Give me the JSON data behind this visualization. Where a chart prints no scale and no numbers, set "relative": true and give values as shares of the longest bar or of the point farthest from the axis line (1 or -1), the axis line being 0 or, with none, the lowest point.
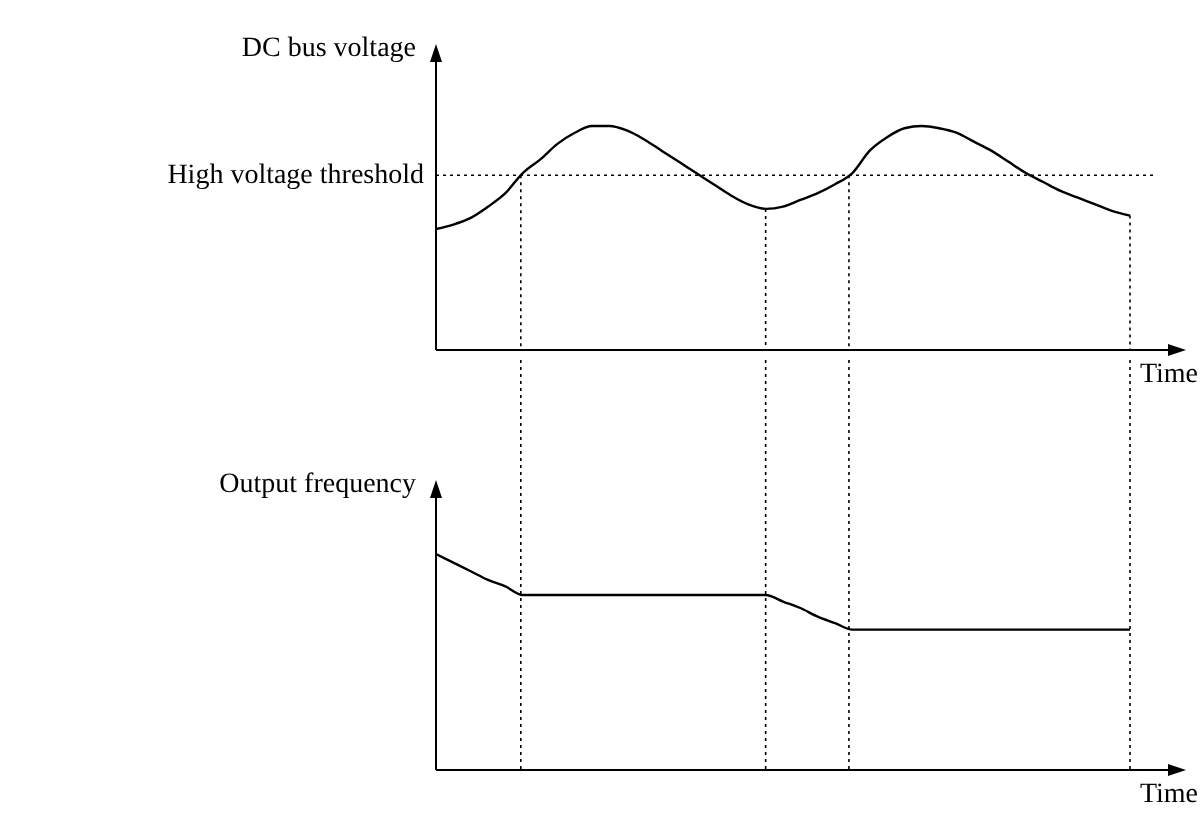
{
  "chart_data": [
    {
      "type": "line",
      "relative": true,
      "ylabel": "DC bus voltage",
      "xlabel": "Time",
      "line_style": "solid",
      "categories": [
        null,
        null,
        null,
        null,
        null,
        null,
        null,
        null,
        null,
        null,
        null,
        null,
        null,
        null,
        null,
        null,
        null,
        null,
        null,
        null,
        null,
        null,
        null,
        null,
        null,
        null,
        null,
        null,
        null,
        null,
        null,
        null,
        null,
        null,
        null,
        null,
        null,
        null,
        null,
        null,
        null
      ],
      "series": [
        {
          "color": "#000000",
          "values": [
            0.54,
            0.56,
            0.59,
            0.64,
            0.7,
            0.79,
            0.85,
            0.92,
            0.97,
            1.0,
            1.0,
            0.98,
            0.94,
            0.89,
            0.84,
            0.79,
            0.74,
            0.69,
            0.65,
            0.63,
            0.64,
            0.67,
            0.7,
            0.74,
            0.79,
            0.89,
            0.95,
            0.99,
            1.0,
            0.99,
            0.97,
            0.93,
            0.89,
            0.84,
            0.79,
            0.75,
            0.71,
            0.68,
            0.65,
            0.62,
            0.6
          ]
        }
      ],
      "ref_lines": [
        {
          "axis": "y",
          "value": 0.78,
          "label": "High voltage threshold",
          "line_style": "dotted",
          "color": "#000000"
        }
      ]
    },
    {
      "type": "line",
      "relative": true,
      "ylabel": "Output frequency",
      "xlabel": "Time",
      "line_style": "solid",
      "grid": "x",
      "categories": [
        null,
        null,
        null,
        null,
        null,
        null,
        null,
        null,
        null,
        null,
        null,
        null,
        null,
        null,
        null,
        null,
        null,
        null,
        null,
        null,
        null,
        null,
        null,
        null,
        null,
        null,
        null,
        null,
        null,
        null,
        null,
        null,
        null,
        null,
        null,
        null,
        null,
        null,
        null,
        null,
        null
      ],
      "series": [
        {
          "color": "#000000",
          "values": [
            1.0,
            0.96,
            0.92,
            0.88,
            0.85,
            0.81,
            0.81,
            0.81,
            0.81,
            0.81,
            0.81,
            0.81,
            0.81,
            0.81,
            0.81,
            0.81,
            0.81,
            0.81,
            0.81,
            0.81,
            0.78,
            0.75,
            0.71,
            0.68,
            0.65,
            0.65,
            0.65,
            0.65,
            0.65,
            0.65,
            0.65,
            0.65,
            0.65,
            0.65,
            0.65,
            0.65,
            0.65,
            0.65,
            0.65,
            0.65,
            0.65
          ]
        }
      ]
    }
  ]
}
